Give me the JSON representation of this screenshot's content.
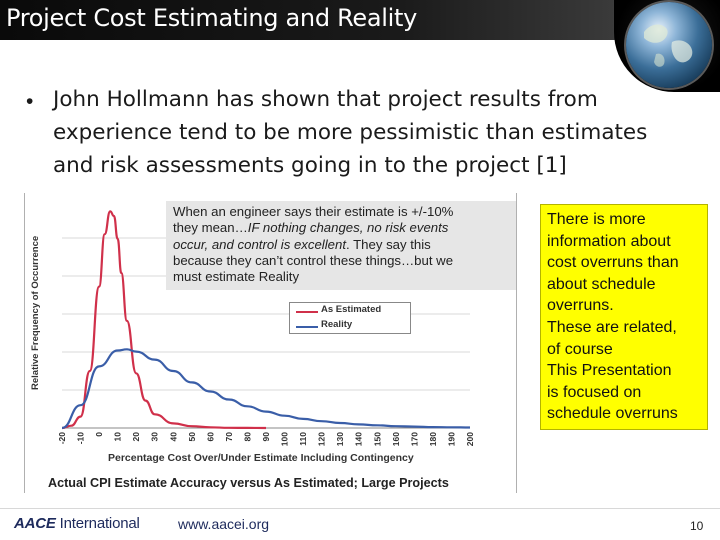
{
  "slide": {
    "title": "Project Cost Estimating and Reality",
    "bullet_lines": [
      "John Hollmann has shown that project results from",
      "experience tend to be more pessimistic than estimates",
      "and risk assessments going in to the project [1]"
    ],
    "bullet_symbol": "•"
  },
  "quote": {
    "line1": "When an engineer says their estimate is +/-10%",
    "line2_plain": "they mean…",
    "line2_italic": "IF nothing changes, no risk events",
    "line3_italic": "occur, and control is excellent",
    "line3_plain": ". They say this",
    "line4": "because they can’t control these things…but we",
    "line5": "must estimate Reality"
  },
  "note_box": {
    "lines": [
      "There is more",
      "information about",
      "cost overruns than",
      "about schedule",
      "overruns.",
      "These are related,",
      "of course",
      "This Presentation",
      "is focused on",
      "schedule overruns"
    ],
    "color": "#ffff00"
  },
  "footer": {
    "logo_text_a": "AACE",
    "logo_text_b": " International",
    "url": "www.aacei.org",
    "page_number": "10"
  },
  "chart_data": {
    "type": "line",
    "x": [
      -20,
      -10,
      0,
      10,
      20,
      30,
      40,
      50,
      60,
      70,
      80,
      90,
      100,
      110,
      120,
      130,
      140,
      150,
      160,
      170,
      180,
      190,
      200
    ],
    "tick_labels": [
      "-20",
      "-10",
      "0",
      "10",
      "20",
      "30",
      "40",
      "50",
      "60",
      "70",
      "80",
      "90",
      "100",
      "110",
      "120",
      "130",
      "140",
      "150",
      "160",
      "170",
      "180",
      "190",
      "200"
    ],
    "xlim": [
      -20,
      200
    ],
    "ylim": [
      0,
      1
    ],
    "series": [
      {
        "name": "As Estimated",
        "color": "#d0304a",
        "x": [
          -20,
          -15,
          -10,
          -5,
          0,
          3,
          6,
          8,
          10,
          12,
          15,
          20,
          25,
          30,
          40,
          50,
          60,
          70,
          80,
          90
        ],
        "values": [
          0.0,
          0.01,
          0.05,
          0.25,
          0.62,
          0.85,
          0.95,
          0.93,
          0.83,
          0.68,
          0.47,
          0.24,
          0.12,
          0.06,
          0.02,
          0.008,
          0.003,
          0.001,
          0.0005,
          0.0
        ]
      },
      {
        "name": "Reality",
        "color": "#3a5ea8",
        "x": [
          -20,
          -10,
          0,
          10,
          15,
          20,
          30,
          40,
          50,
          60,
          70,
          80,
          90,
          100,
          110,
          120,
          130,
          140,
          150,
          160,
          170,
          180,
          190,
          200
        ],
        "values": [
          0.0,
          0.1,
          0.27,
          0.34,
          0.345,
          0.335,
          0.3,
          0.25,
          0.2,
          0.16,
          0.125,
          0.095,
          0.072,
          0.054,
          0.04,
          0.03,
          0.022,
          0.016,
          0.012,
          0.008,
          0.006,
          0.004,
          0.003,
          0.002
        ]
      }
    ],
    "xlabel": "Percentage Cost Over/Under Estimate Including Contingency",
    "ylabel": "Relative Frequency of Occurrence",
    "caption": "Actual CPI Estimate Accuracy versus As Estimated; Large Projects",
    "grid": true
  }
}
